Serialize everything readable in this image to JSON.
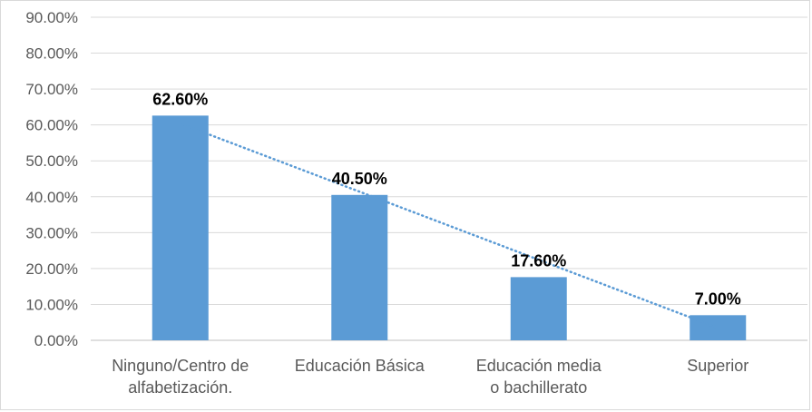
{
  "chart_data": {
    "type": "bar",
    "title": "",
    "xlabel": "",
    "ylabel": "",
    "categories": [
      [
        "Ninguno/Centro de",
        "alfabetización."
      ],
      [
        "Educación Básica"
      ],
      [
        "Educación media",
        "o bachillerato"
      ],
      [
        "Superior"
      ]
    ],
    "values": [
      62.6,
      40.5,
      17.6,
      7.0
    ],
    "data_labels": [
      "62.60%",
      "40.50%",
      "17.60%",
      "7.00%"
    ],
    "ylim": [
      0,
      90
    ],
    "y_ticks": [
      "0.00%",
      "10.00%",
      "20.00%",
      "30.00%",
      "40.00%",
      "50.00%",
      "60.00%",
      "70.00%",
      "80.00%",
      "90.00%"
    ],
    "grid": true,
    "trendline": "linear",
    "colors": {
      "bar": "#5b9bd5",
      "trendline": "#5b9bd5",
      "grid": "#d9d9d9",
      "axis": "#bfbfbf"
    }
  }
}
